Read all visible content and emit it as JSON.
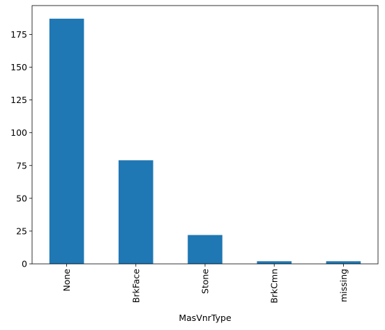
{
  "chart_data": {
    "type": "bar",
    "x_label": "MasVnrType",
    "categories": [
      "None",
      "BrkFace",
      "Stone",
      "BrkCmn",
      "missing"
    ],
    "values": [
      187,
      79,
      22,
      2,
      2
    ],
    "color": "#1f77b4",
    "ylim": [
      0,
      197
    ],
    "yticks": [
      0,
      25,
      50,
      75,
      100,
      125,
      150,
      175
    ],
    "grid": false
  }
}
